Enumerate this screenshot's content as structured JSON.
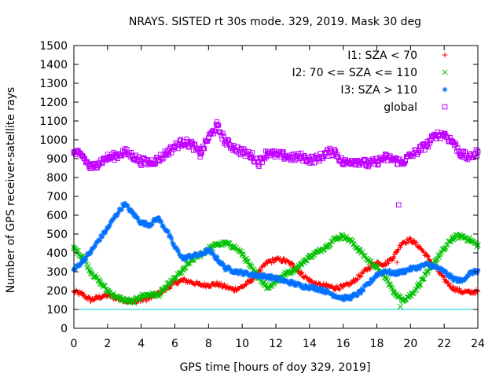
{
  "chart_data": {
    "type": "scatter",
    "title": "NRAYS. SISTED rt 30s mode. 329, 2019. Mask 30 deg",
    "xlabel": "GPS time [hours of doy 329, 2019]",
    "ylabel": "Number of GPS receiver-satellite rays",
    "xlim": [
      0,
      24
    ],
    "ylim": [
      0,
      1500
    ],
    "xticks": [
      0,
      2,
      4,
      6,
      8,
      10,
      12,
      14,
      16,
      18,
      20,
      22,
      24
    ],
    "yticks": [
      0,
      100,
      200,
      300,
      400,
      500,
      600,
      700,
      800,
      900,
      1000,
      1100,
      1200,
      1300,
      1400,
      1500
    ],
    "grid": false,
    "legend_position": "top-right",
    "reference_line": {
      "y": 100,
      "color": "#00d0d0"
    },
    "series": [
      {
        "name": "I1: SZA < 70",
        "color": "#ff0000",
        "marker": "+",
        "x": [
          0,
          0.5,
          1,
          1.5,
          2,
          2.5,
          3,
          3.5,
          4,
          4.5,
          5,
          5.5,
          6,
          6.5,
          7,
          7.5,
          8,
          8.5,
          9,
          9.5,
          10,
          10.5,
          11,
          11.5,
          12,
          12.5,
          13,
          13.5,
          14,
          14.5,
          15,
          15.5,
          16,
          16.5,
          17,
          17.5,
          18,
          18.5,
          19,
          19.5,
          20,
          20.5,
          21,
          21.5,
          22,
          22.5,
          23,
          23.5,
          24
        ],
        "y": [
          195,
          180,
          150,
          165,
          175,
          160,
          150,
          140,
          150,
          160,
          185,
          210,
          240,
          255,
          245,
          230,
          230,
          235,
          220,
          205,
          220,
          250,
          300,
          350,
          365,
          360,
          335,
          290,
          255,
          230,
          225,
          215,
          220,
          240,
          280,
          320,
          350,
          340,
          380,
          455,
          470,
          435,
          380,
          320,
          260,
          215,
          195,
          190,
          195
        ]
      },
      {
        "name": "I2: 70 <= SZA <= 110",
        "color": "#00c000",
        "marker": "x",
        "x": [
          0,
          0.5,
          1,
          1.5,
          2,
          2.5,
          3,
          3.5,
          4,
          4.5,
          5,
          5.5,
          6,
          6.5,
          7,
          7.5,
          8,
          8.5,
          9,
          9.5,
          10,
          10.5,
          11,
          11.5,
          12,
          12.5,
          13,
          13.5,
          14,
          14.5,
          15,
          15.5,
          16,
          16.5,
          17,
          17.5,
          18,
          18.5,
          19,
          19.5,
          20,
          20.5,
          21,
          21.5,
          22,
          22.5,
          23,
          23.5,
          24
        ],
        "y": [
          425,
          380,
          300,
          250,
          200,
          165,
          150,
          140,
          170,
          180,
          175,
          220,
          265,
          310,
          360,
          390,
          420,
          445,
          450,
          435,
          395,
          325,
          270,
          215,
          250,
          285,
          305,
          340,
          380,
          405,
          435,
          475,
          490,
          460,
          410,
          360,
          320,
          270,
          195,
          150,
          175,
          230,
          295,
          360,
          420,
          480,
          490,
          470,
          440
        ]
      },
      {
        "name": "I3: SZA > 110",
        "color": "#0070ff",
        "marker": "*",
        "x": [
          0,
          0.5,
          1,
          1.5,
          2,
          2.5,
          3,
          3.5,
          4,
          4.5,
          5,
          5.5,
          6,
          6.5,
          7,
          7.5,
          8,
          8.5,
          9,
          9.5,
          10,
          10.5,
          11,
          11.5,
          12,
          12.5,
          13,
          13.5,
          14,
          14.5,
          15,
          15.5,
          16,
          16.5,
          17,
          17.5,
          18,
          18.5,
          19,
          19.5,
          20,
          20.5,
          21,
          21.5,
          22,
          22.5,
          23,
          23.5,
          24
        ],
        "y": [
          310,
          355,
          405,
          470,
          530,
          600,
          660,
          610,
          560,
          550,
          585,
          520,
          430,
          370,
          385,
          390,
          415,
          370,
          320,
          305,
          295,
          285,
          280,
          275,
          265,
          250,
          240,
          225,
          220,
          210,
          195,
          175,
          160,
          165,
          190,
          235,
          285,
          305,
          290,
          300,
          315,
          325,
          340,
          325,
          300,
          265,
          250,
          290,
          305
        ]
      },
      {
        "name": "global",
        "color": "#c000ff",
        "marker": "square",
        "x": [
          0,
          0.5,
          1,
          1.5,
          2,
          2.5,
          3,
          3.5,
          4,
          4.5,
          5,
          5.5,
          6,
          6.5,
          7,
          7.5,
          8,
          8.5,
          9,
          9.5,
          10,
          10.5,
          11,
          11.5,
          12,
          12.5,
          13,
          13.5,
          14,
          14.5,
          15,
          15.5,
          16,
          16.5,
          17,
          17.5,
          18,
          18.5,
          19,
          19.5,
          20,
          20.5,
          21,
          21.5,
          22,
          22.5,
          23,
          23.5,
          24
        ],
        "y": [
          930,
          915,
          850,
          880,
          905,
          915,
          935,
          915,
          885,
          880,
          895,
          930,
          965,
          990,
          975,
          925,
          1010,
          1075,
          990,
          960,
          935,
          920,
          880,
          935,
          920,
          915,
          905,
          910,
          895,
          900,
          930,
          940,
          875,
          890,
          885,
          870,
          885,
          905,
          895,
          880,
          915,
          945,
          975,
          1025,
          1030,
          990,
          925,
          905,
          935
        ]
      }
    ],
    "outliers": [
      {
        "series": "global",
        "x": 19.3,
        "y": 655
      },
      {
        "series": "I1: SZA < 70",
        "x": 19.2,
        "y": 350
      },
      {
        "series": "I2: 70 <= SZA <= 110",
        "x": 19.4,
        "y": 115
      }
    ]
  }
}
